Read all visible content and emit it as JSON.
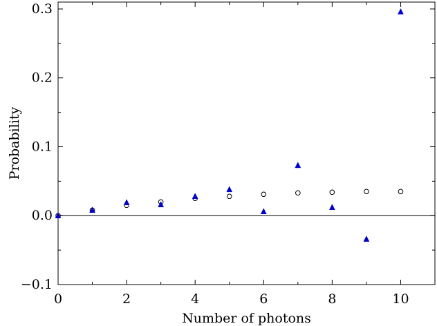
{
  "chart_data": {
    "type": "scatter",
    "xlabel": "Number of photons",
    "ylabel": "Probability",
    "xlim": [
      0,
      11
    ],
    "ylim": [
      -0.1,
      0.31
    ],
    "grid": false,
    "zero_line": true,
    "x_ticks": [
      0,
      2,
      4,
      6,
      8,
      10
    ],
    "x_tick_labels": [
      "0",
      "2",
      "4",
      "6",
      "8",
      "10"
    ],
    "y_ticks": [
      -0.1,
      0.0,
      0.1,
      0.2,
      0.3
    ],
    "y_tick_labels": [
      "−0.1",
      "0.0",
      "0.1",
      "0.2",
      "0.3"
    ],
    "series": [
      {
        "marker": "open-circle",
        "color": "#000000",
        "x": [
          0,
          1,
          2,
          3,
          4,
          5,
          6,
          7,
          8,
          9,
          10
        ],
        "values": [
          0.0,
          0.008,
          0.015,
          0.02,
          0.025,
          0.028,
          0.031,
          0.033,
          0.034,
          0.035,
          0.035
        ]
      },
      {
        "marker": "filled-triangle",
        "color": "#0000cc",
        "x": [
          0,
          1,
          2,
          3,
          4,
          5,
          6,
          7,
          8,
          9,
          10
        ],
        "values": [
          0.0,
          0.008,
          0.019,
          0.016,
          0.028,
          0.038,
          0.006,
          0.073,
          0.012,
          -0.034,
          0.296
        ]
      }
    ]
  }
}
